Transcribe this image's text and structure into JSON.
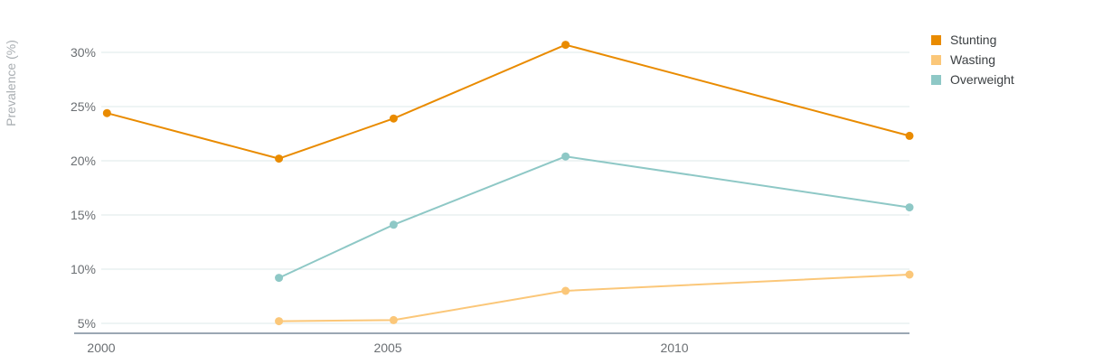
{
  "chart_data": {
    "type": "line",
    "xlabel": "",
    "ylabel": "Prevalence (%)",
    "xlim": [
      2000,
      2014.5
    ],
    "ylim": [
      4,
      33
    ],
    "x_ticks": [
      {
        "value": 2000,
        "label": "2000"
      },
      {
        "value": 2005,
        "label": "2005"
      },
      {
        "value": 2010,
        "label": "2010"
      }
    ],
    "y_ticks": [
      {
        "value": 5,
        "label": "5%"
      },
      {
        "value": 10,
        "label": "10%"
      },
      {
        "value": 15,
        "label": "15%"
      },
      {
        "value": 20,
        "label": "20%"
      },
      {
        "value": 25,
        "label": "25%"
      },
      {
        "value": 30,
        "label": "30%"
      }
    ],
    "grid": true,
    "legend_position": "top-right",
    "series": [
      {
        "name": "Stunting",
        "color": "#e98b00",
        "points": [
          {
            "x": 2000.1,
            "y": 24.4
          },
          {
            "x": 2003.1,
            "y": 20.2
          },
          {
            "x": 2005.1,
            "y": 23.9
          },
          {
            "x": 2008.1,
            "y": 30.7
          },
          {
            "x": 2014.1,
            "y": 22.3
          }
        ]
      },
      {
        "name": "Wasting",
        "color": "#fbc779",
        "points": [
          {
            "x": 2003.1,
            "y": 5.2
          },
          {
            "x": 2005.1,
            "y": 5.3
          },
          {
            "x": 2008.1,
            "y": 8.0
          },
          {
            "x": 2014.1,
            "y": 9.5
          }
        ]
      },
      {
        "name": "Overweight",
        "color": "#8ec8c6",
        "points": [
          {
            "x": 2003.1,
            "y": 9.2
          },
          {
            "x": 2005.1,
            "y": 14.1
          },
          {
            "x": 2008.1,
            "y": 20.4
          },
          {
            "x": 2014.1,
            "y": 15.7
          }
        ]
      }
    ]
  }
}
